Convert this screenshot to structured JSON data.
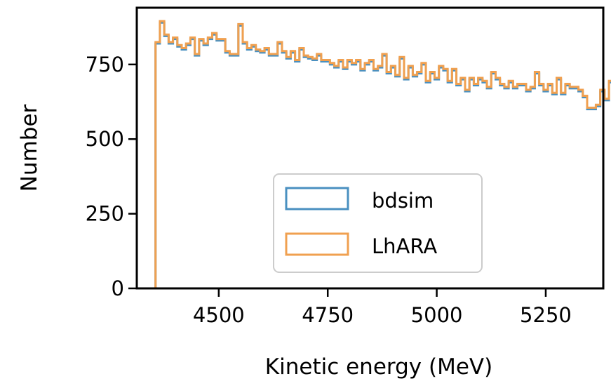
{
  "chart_data": {
    "type": "histogram",
    "title": "",
    "xlabel": "Kinetic energy (MeV)",
    "ylabel": "Number",
    "xlim": [
      4312,
      5382
    ],
    "ylim": [
      0,
      940
    ],
    "xticks": [
      4500,
      4750,
      5000,
      5250
    ],
    "yticks": [
      0,
      250,
      500,
      750
    ],
    "grid": false,
    "legend_position": "lower-center",
    "bins": {
      "start": 4355,
      "width": 10
    },
    "series": [
      {
        "name": "bdsim",
        "color": "#4a90c0",
        "values": [
          820,
          890,
          845,
          820,
          835,
          810,
          800,
          815,
          835,
          780,
          830,
          815,
          835,
          850,
          830,
          830,
          790,
          780,
          780,
          880,
          820,
          800,
          810,
          795,
          790,
          800,
          780,
          780,
          820,
          790,
          770,
          790,
          760,
          800,
          775,
          770,
          765,
          780,
          760,
          760,
          750,
          740,
          760,
          735,
          760,
          750,
          760,
          730,
          750,
          760,
          730,
          740,
          780,
          720,
          740,
          710,
          770,
          700,
          740,
          710,
          720,
          750,
          690,
          720,
          700,
          740,
          730,
          690,
          730,
          680,
          700,
          660,
          700,
          680,
          700,
          690,
          670,
          720,
          700,
          680,
          670,
          690,
          670,
          680,
          680,
          660,
          670,
          720,
          680,
          660,
          680,
          650,
          700,
          650,
          680,
          670,
          670,
          660,
          640,
          600,
          600,
          610,
          660,
          630,
          690
        ]
      },
      {
        "name": "LhARA",
        "color": "#f0a050",
        "values": [
          825,
          895,
          850,
          825,
          840,
          815,
          805,
          820,
          840,
          785,
          835,
          820,
          840,
          855,
          835,
          835,
          795,
          785,
          785,
          885,
          825,
          805,
          815,
          800,
          795,
          805,
          785,
          785,
          825,
          795,
          775,
          795,
          765,
          805,
          780,
          775,
          770,
          785,
          765,
          765,
          755,
          745,
          765,
          740,
          765,
          755,
          765,
          735,
          755,
          765,
          735,
          745,
          785,
          725,
          745,
          715,
          775,
          705,
          745,
          715,
          725,
          755,
          695,
          725,
          705,
          745,
          735,
          695,
          735,
          685,
          705,
          665,
          705,
          685,
          705,
          695,
          675,
          725,
          705,
          685,
          675,
          695,
          675,
          685,
          685,
          665,
          675,
          725,
          685,
          665,
          685,
          655,
          705,
          655,
          685,
          675,
          675,
          665,
          645,
          605,
          605,
          615,
          665,
          635,
          695
        ]
      }
    ]
  }
}
